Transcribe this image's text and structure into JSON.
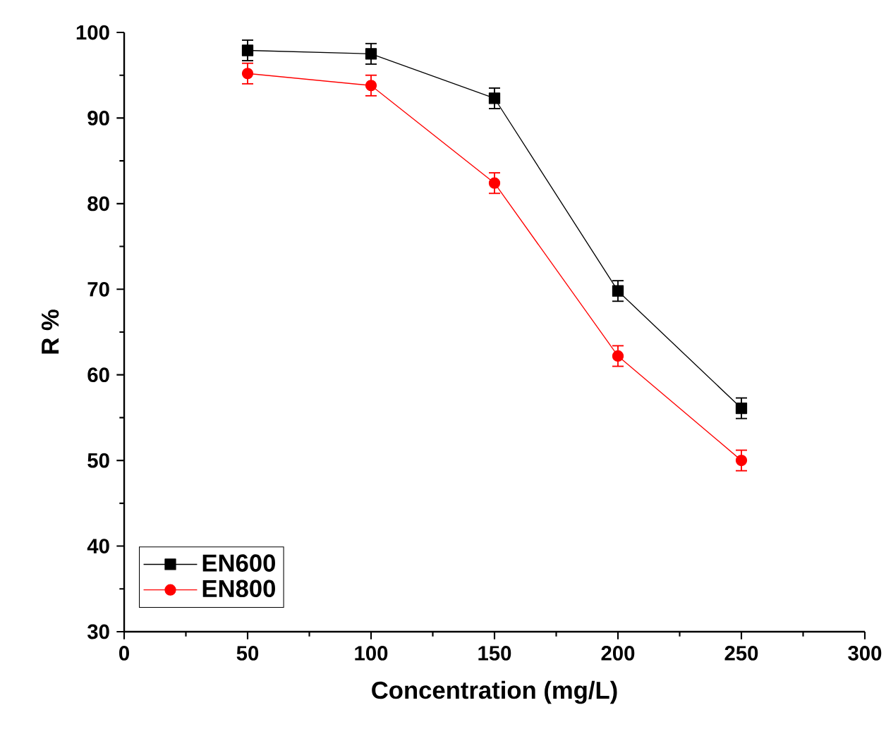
{
  "chart_data": {
    "type": "line",
    "xlabel": "Concentration (mg/L)",
    "ylabel": "R %",
    "x": [
      50,
      100,
      150,
      200,
      250
    ],
    "series": [
      {
        "name": "EN600",
        "color": "#000000",
        "marker": "square",
        "values": [
          97.9,
          97.5,
          92.3,
          69.8,
          56.1
        ],
        "errors": [
          1.2,
          1.2,
          1.2,
          1.2,
          1.2
        ]
      },
      {
        "name": "EN800",
        "color": "#ff0000",
        "marker": "circle",
        "values": [
          95.2,
          93.8,
          82.4,
          62.2,
          50.0
        ],
        "errors": [
          1.2,
          1.2,
          1.2,
          1.2,
          1.2
        ]
      }
    ],
    "xlim": [
      0,
      300
    ],
    "xticks": [
      0,
      50,
      100,
      150,
      200,
      250,
      300
    ],
    "ylim": [
      30,
      100
    ],
    "yticks": [
      30,
      40,
      50,
      60,
      70,
      80,
      90,
      100
    ],
    "grid": false,
    "legend": "bottom left"
  }
}
